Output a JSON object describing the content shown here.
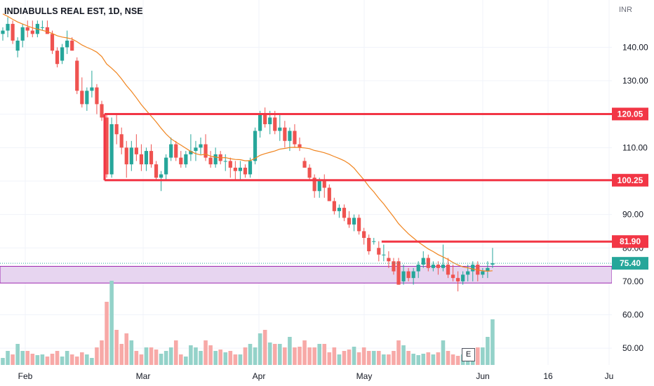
{
  "header": {
    "symbol_title": "INDIABULLS REAL EST, 1D, NSE",
    "currency": "INR"
  },
  "earnings_marker": {
    "label": "E"
  },
  "colors": {
    "up": "#26a69a",
    "down": "#ef5350",
    "vol_up": "#94d2c9",
    "vol_down": "#f7a9a7",
    "ma": "#f0841e",
    "level": "#f23645",
    "zone_fill": "#e7d5f0",
    "zone_border": "#9c27b0",
    "current_price": "#26a69a",
    "grid": "#f0f3fa"
  },
  "chart_data": {
    "type": "candlestick",
    "title": "INDIABULLS REAL EST, 1D, NSE",
    "ylabel": "INR",
    "y_range": [
      45,
      151
    ],
    "y_ticks": [
      50,
      60,
      70,
      80,
      90,
      100,
      110,
      120,
      130,
      140
    ],
    "x_ticks": [
      "Feb",
      "Mar",
      "Apr",
      "May",
      "Jun",
      "16",
      "Ju"
    ],
    "grid": true,
    "moving_average": {
      "type": "line"
    },
    "horizontal_levels": [
      {
        "value": 120.05,
        "label": "120.05",
        "from_day": 21
      },
      {
        "value": 100.25,
        "label": "100.25",
        "from_day": 21
      },
      {
        "value": 81.9,
        "label": "81.90",
        "from_day": 77
      }
    ],
    "support_zone": {
      "low": 69.5,
      "high": 74.5
    },
    "current_price": {
      "value": 75.4,
      "label": "75.40"
    },
    "candles": [
      [
        0,
        144,
        146,
        142,
        145
      ],
      [
        1,
        145,
        149,
        143,
        147
      ],
      [
        2,
        147,
        148,
        141,
        142
      ],
      [
        3,
        139,
        143,
        137,
        142
      ],
      [
        4,
        142,
        147,
        140,
        146
      ],
      [
        5,
        146,
        148,
        143,
        145
      ],
      [
        6,
        145,
        148,
        143,
        144
      ],
      [
        7,
        144,
        148,
        143,
        147
      ],
      [
        8,
        146,
        148,
        145,
        146
      ],
      [
        9,
        146,
        148,
        144,
        144
      ],
      [
        10,
        144,
        145,
        138,
        139
      ],
      [
        11,
        139,
        140,
        134,
        135
      ],
      [
        12,
        136,
        141,
        135,
        140
      ],
      [
        13,
        140,
        145,
        138,
        142
      ],
      [
        14,
        142,
        143,
        139,
        139
      ],
      [
        15,
        136,
        137,
        126,
        127
      ],
      [
        16,
        127,
        131,
        122,
        123
      ],
      [
        17,
        123,
        128,
        121,
        127
      ],
      [
        18,
        127,
        133,
        125,
        128
      ],
      [
        19,
        128,
        129,
        120,
        123
      ],
      [
        20,
        123,
        124,
        118,
        119
      ],
      [
        21,
        119,
        120,
        101,
        102
      ],
      [
        22,
        102,
        119,
        101,
        117
      ],
      [
        23,
        117,
        120,
        111,
        114
      ],
      [
        24,
        114,
        116,
        108,
        110
      ],
      [
        25,
        110,
        112,
        101,
        105
      ],
      [
        26,
        105,
        112,
        103,
        110
      ],
      [
        27,
        110,
        114,
        106,
        108
      ],
      [
        28,
        108,
        111,
        103,
        105
      ],
      [
        29,
        105,
        110,
        103,
        109
      ],
      [
        30,
        109,
        111,
        104,
        105
      ],
      [
        31,
        105,
        106,
        100,
        101
      ],
      [
        32,
        101,
        103,
        97,
        102
      ],
      [
        33,
        102,
        108,
        100,
        107
      ],
      [
        34,
        107,
        113,
        106,
        111
      ],
      [
        35,
        111,
        112,
        106,
        107
      ],
      [
        36,
        107,
        109,
        104,
        105
      ],
      [
        37,
        105,
        109,
        104,
        108
      ],
      [
        38,
        108,
        114,
        106,
        109
      ],
      [
        39,
        109,
        112,
        106,
        110
      ],
      [
        40,
        110,
        113,
        108,
        111
      ],
      [
        41,
        111,
        114,
        106,
        107
      ],
      [
        42,
        107,
        109,
        104,
        105
      ],
      [
        43,
        105,
        110,
        104,
        108
      ],
      [
        44,
        108,
        109,
        105,
        106
      ],
      [
        45,
        106,
        108,
        103,
        106
      ],
      [
        46,
        106,
        107,
        101,
        104
      ],
      [
        47,
        104,
        106,
        100,
        103
      ],
      [
        48,
        103,
        106,
        100,
        104
      ],
      [
        49,
        104,
        105,
        101,
        102
      ],
      [
        50,
        102,
        107,
        101,
        106
      ],
      [
        51,
        106,
        116,
        105,
        115
      ],
      [
        52,
        115,
        121,
        113,
        120
      ],
      [
        53,
        120,
        122,
        116,
        117
      ],
      [
        54,
        117,
        121,
        114,
        119
      ],
      [
        55,
        119,
        121,
        114,
        115
      ],
      [
        56,
        115,
        120,
        112,
        116
      ],
      [
        57,
        116,
        118,
        110,
        112
      ],
      [
        58,
        112,
        116,
        109,
        115
      ],
      [
        59,
        115,
        117,
        110,
        111
      ],
      [
        60,
        111,
        113,
        109,
        110
      ],
      [
        61,
        106,
        107,
        104,
        104
      ],
      [
        62,
        104,
        105,
        100,
        101
      ],
      [
        63,
        101,
        102,
        95,
        97
      ],
      [
        64,
        97,
        101,
        95,
        100
      ],
      [
        65,
        100,
        102,
        95,
        98
      ],
      [
        66,
        98,
        99,
        94,
        94
      ],
      [
        67,
        94,
        95,
        90,
        91
      ],
      [
        68,
        91,
        93,
        89,
        92
      ],
      [
        69,
        92,
        93,
        88,
        89
      ],
      [
        70,
        89,
        91,
        86,
        87
      ],
      [
        71,
        87,
        90,
        85,
        89
      ],
      [
        72,
        89,
        90,
        84,
        85
      ],
      [
        73,
        85,
        86,
        81,
        83
      ],
      [
        74,
        83,
        84,
        78,
        79
      ],
      [
        75,
        82,
        83,
        81,
        82
      ],
      [
        76,
        80,
        82,
        76,
        78
      ],
      [
        77,
        78,
        81,
        76,
        78
      ],
      [
        78,
        77,
        79,
        74,
        76
      ],
      [
        79,
        76,
        77,
        72,
        73
      ],
      [
        80,
        76,
        77,
        69,
        69
      ],
      [
        81,
        70,
        75,
        69,
        73
      ],
      [
        82,
        73,
        74,
        70,
        71
      ],
      [
        83,
        71,
        74,
        69,
        73
      ],
      [
        84,
        73,
        76,
        71,
        75
      ],
      [
        85,
        75,
        79,
        74,
        77
      ],
      [
        86,
        77,
        78,
        73,
        74
      ],
      [
        87,
        74,
        76,
        73,
        75
      ],
      [
        88,
        75,
        76,
        72,
        74
      ],
      [
        89,
        74,
        81,
        73,
        75
      ],
      [
        90,
        75,
        77,
        71,
        72
      ],
      [
        91,
        72,
        75,
        70,
        71
      ],
      [
        92,
        71,
        73,
        67,
        70
      ],
      [
        93,
        70,
        73,
        69,
        72
      ],
      [
        94,
        72,
        75,
        70,
        73
      ],
      [
        95,
        73,
        76,
        70,
        75
      ],
      [
        96,
        75,
        76,
        70,
        72
      ],
      [
        97,
        72,
        74,
        71,
        73
      ],
      [
        98,
        73,
        76,
        71,
        74
      ],
      [
        99,
        75,
        80,
        74,
        75.4
      ]
    ],
    "volume": [
      [
        0,
        1
      ],
      [
        1,
        2
      ],
      [
        2,
        1.5
      ],
      [
        3,
        3
      ],
      [
        4,
        2
      ],
      [
        5,
        2
      ],
      [
        6,
        1.6
      ],
      [
        7,
        1.4
      ],
      [
        8,
        1.5
      ],
      [
        9,
        1.2
      ],
      [
        10,
        1.6
      ],
      [
        11,
        2
      ],
      [
        12,
        1.2
      ],
      [
        13,
        2
      ],
      [
        14,
        1.5
      ],
      [
        15,
        1.2
      ],
      [
        16,
        1.8
      ],
      [
        17,
        1.5
      ],
      [
        18,
        1
      ],
      [
        19,
        2.5
      ],
      [
        20,
        3.5
      ],
      [
        21,
        9
      ],
      [
        22,
        12
      ],
      [
        23,
        5
      ],
      [
        24,
        3
      ],
      [
        25,
        4.5
      ],
      [
        26,
        3.5
      ],
      [
        27,
        2
      ],
      [
        28,
        1.5
      ],
      [
        29,
        2.5
      ],
      [
        30,
        2.5
      ],
      [
        31,
        2.2
      ],
      [
        32,
        1.6
      ],
      [
        33,
        2
      ],
      [
        34,
        2.5
      ],
      [
        35,
        3.5
      ],
      [
        36,
        1.5
      ],
      [
        37,
        1.2
      ],
      [
        38,
        2.8
      ],
      [
        39,
        2.5
      ],
      [
        40,
        2
      ],
      [
        41,
        3.5
      ],
      [
        42,
        2.8
      ],
      [
        43,
        2
      ],
      [
        44,
        2.2
      ],
      [
        45,
        1.8
      ],
      [
        46,
        2
      ],
      [
        47,
        1.5
      ],
      [
        48,
        1.5
      ],
      [
        49,
        2.5
      ],
      [
        50,
        3
      ],
      [
        51,
        2.5
      ],
      [
        52,
        4.5
      ],
      [
        53,
        5
      ],
      [
        54,
        3.2
      ],
      [
        55,
        3
      ],
      [
        56,
        3
      ],
      [
        57,
        2.5
      ],
      [
        58,
        4
      ],
      [
        59,
        2.5
      ],
      [
        60,
        2.6
      ],
      [
        61,
        3.5
      ],
      [
        62,
        2.5
      ],
      [
        63,
        2.5
      ],
      [
        64,
        3
      ],
      [
        65,
        3
      ],
      [
        66,
        1.8
      ],
      [
        67,
        2.5
      ],
      [
        68,
        1.5
      ],
      [
        69,
        2
      ],
      [
        70,
        2.2
      ],
      [
        71,
        2.6
      ],
      [
        72,
        1.8
      ],
      [
        73,
        2.5
      ],
      [
        74,
        2
      ],
      [
        75,
        2
      ],
      [
        76,
        2
      ],
      [
        77,
        1.5
      ],
      [
        78,
        1.5
      ],
      [
        79,
        2
      ],
      [
        80,
        3.5
      ],
      [
        81,
        2.8
      ],
      [
        82,
        2
      ],
      [
        83,
        1.6
      ],
      [
        84,
        1.4
      ],
      [
        85,
        1.6
      ],
      [
        86,
        1.8
      ],
      [
        87,
        1.5
      ],
      [
        88,
        1.8
      ],
      [
        89,
        3.5
      ],
      [
        90,
        2
      ],
      [
        91,
        1.5
      ],
      [
        92,
        1.3
      ],
      [
        93,
        1.5
      ],
      [
        94,
        1.8
      ],
      [
        95,
        1.6
      ],
      [
        96,
        2.5
      ],
      [
        97,
        2.5
      ],
      [
        98,
        4
      ],
      [
        99,
        6.5
      ]
    ],
    "volume_max": 13
  }
}
